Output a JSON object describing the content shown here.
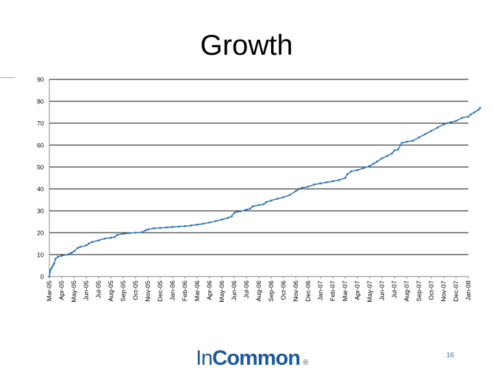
{
  "slide": {
    "title": "Growth",
    "logo_in": "In",
    "logo_common": "Common",
    "logo_mark": "®",
    "page_number": "16"
  },
  "colors": {
    "line": "#2e75b6",
    "grid": "#000000",
    "logo": "#1d5a9c"
  },
  "chart_data": {
    "type": "line",
    "title": "",
    "xlabel": "",
    "ylabel": "",
    "ylim": [
      0,
      90
    ],
    "yticks": [
      0,
      10,
      20,
      30,
      40,
      50,
      60,
      70,
      80,
      90
    ],
    "grid": true,
    "legend": "none",
    "categories": [
      "Mar-05",
      "Apr-05",
      "May-05",
      "Jun-05",
      "Jul-05",
      "Aug-05",
      "Sep-05",
      "Oct-05",
      "Nov-05",
      "Dec-05",
      "Jan-06",
      "Feb-06",
      "Mar-06",
      "Apr-06",
      "May-06",
      "Jun-06",
      "Jul-06",
      "Aug-06",
      "Sep-06",
      "Oct-06",
      "Nov-06",
      "Dec-06",
      "Jan-07",
      "Feb-07",
      "Mar-07",
      "Apr-07",
      "May-07",
      "Jun-07",
      "Jul-07",
      "Aug-07",
      "Sep-07",
      "Oct-07",
      "Nov-07",
      "Dec-07",
      "Jan-08"
    ],
    "series": [
      {
        "x": [
          0,
          0.05,
          0.1,
          0.2,
          0.3,
          0.4,
          0.5,
          0.7,
          1.0,
          1.5,
          1.8,
          2.0,
          2.3,
          2.5,
          3.0,
          3.2,
          3.5,
          4.0,
          4.5,
          5.0,
          5.3,
          5.5,
          6.0,
          6.5,
          7.0,
          7.5,
          7.8,
          8.0,
          8.5,
          9.0,
          9.5,
          10.0,
          10.5,
          11.0,
          11.5,
          12.0,
          12.5,
          13.0,
          13.5,
          14.0,
          14.5,
          14.8,
          15.0,
          15.2,
          15.5,
          16.0,
          16.3,
          16.5,
          17.0,
          17.4,
          17.6,
          18.0,
          18.5,
          19.0,
          19.5,
          20.0,
          20.3,
          20.5,
          21.0,
          21.5,
          22.0,
          22.5,
          23.0,
          23.5,
          24.0,
          24.2,
          24.5,
          25.0,
          25.5,
          26.0,
          26.3,
          26.6,
          27.0,
          27.4,
          27.8,
          28.0,
          28.3,
          28.6,
          29.0,
          29.5,
          30.0,
          30.5,
          31.0,
          31.5,
          32.0,
          32.3,
          32.6,
          33.0,
          33.5,
          34.0,
          34.2,
          34.5,
          34.8,
          34.95
        ],
        "y": [
          0,
          2,
          3,
          4,
          5,
          6,
          8,
          9,
          9.5,
          10,
          10.8,
          11.5,
          13,
          13.5,
          14.2,
          15,
          15.8,
          16.5,
          17.3,
          17.7,
          18,
          19,
          19.5,
          19.8,
          20,
          20.2,
          21,
          21.5,
          22,
          22.2,
          22.4,
          22.6,
          22.8,
          23,
          23.3,
          23.7,
          24.1,
          24.7,
          25.3,
          26,
          26.8,
          27.5,
          29,
          29.5,
          29.8,
          30.5,
          31,
          32,
          32.6,
          33,
          34,
          34.7,
          35.5,
          36.2,
          37.2,
          39,
          40,
          40.5,
          41,
          42,
          42.5,
          43,
          43.5,
          44,
          45,
          46.8,
          48,
          48.6,
          49.5,
          50.5,
          51.5,
          52.5,
          54,
          55,
          56.2,
          57.5,
          58,
          61,
          61.5,
          62,
          63.5,
          65,
          66.5,
          68,
          69.5,
          70,
          70.5,
          71,
          72.5,
          73,
          74,
          75,
          76,
          77
        ]
      }
    ]
  }
}
